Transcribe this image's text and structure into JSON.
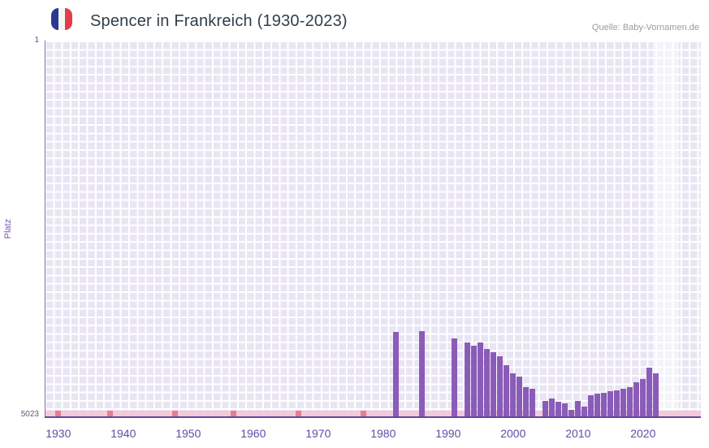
{
  "header": {
    "title": "Spencer in Frankreich (1930-2023)",
    "source": "Quelle: Baby-Vornamen.de",
    "flag_colors": [
      "#2b3a8f",
      "#f4f4f4",
      "#e23c49"
    ]
  },
  "chart_data": {
    "type": "bar",
    "title": "Spencer in Frankreich (1930-2023)",
    "xlabel": "",
    "ylabel": "Platz",
    "y_axis": {
      "min": 1,
      "max": 5023,
      "inverted": true,
      "top_label": "1",
      "bottom_label": "5023"
    },
    "x_range": [
      1927.9,
      2028.9
    ],
    "x_ticks": [
      "1930",
      "1940",
      "1950",
      "1960",
      "1970",
      "1980",
      "1990",
      "2000",
      "2010",
      "2020"
    ],
    "grid": true,
    "legend": false,
    "bars": [
      {
        "year": 1982,
        "rank": 3890
      },
      {
        "year": 1986,
        "rank": 3885
      },
      {
        "year": 1991,
        "rank": 3985
      },
      {
        "year": 1993,
        "rank": 4040
      },
      {
        "year": 1994,
        "rank": 4075
      },
      {
        "year": 1995,
        "rank": 4035
      },
      {
        "year": 1996,
        "rank": 4120
      },
      {
        "year": 1997,
        "rank": 4165
      },
      {
        "year": 1998,
        "rank": 4220
      },
      {
        "year": 1999,
        "rank": 4340
      },
      {
        "year": 2000,
        "rank": 4445
      },
      {
        "year": 2001,
        "rank": 4490
      },
      {
        "year": 2002,
        "rank": 4630
      },
      {
        "year": 2003,
        "rank": 4650
      },
      {
        "year": 2005,
        "rank": 4815
      },
      {
        "year": 2006,
        "rank": 4780
      },
      {
        "year": 2007,
        "rank": 4825
      },
      {
        "year": 2008,
        "rank": 4845
      },
      {
        "year": 2009,
        "rank": 4935
      },
      {
        "year": 2010,
        "rank": 4815
      },
      {
        "year": 2011,
        "rank": 4890
      },
      {
        "year": 2012,
        "rank": 4740
      },
      {
        "year": 2013,
        "rank": 4720
      },
      {
        "year": 2014,
        "rank": 4705
      },
      {
        "year": 2015,
        "rank": 4685
      },
      {
        "year": 2016,
        "rank": 4670
      },
      {
        "year": 2017,
        "rank": 4650
      },
      {
        "year": 2018,
        "rank": 4630
      },
      {
        "year": 2019,
        "rank": 4565
      },
      {
        "year": 2020,
        "rank": 4520
      },
      {
        "year": 2021,
        "rank": 4370
      },
      {
        "year": 2022,
        "rank": 4445
      }
    ],
    "bottom_marker_years": [
      1930,
      1938,
      1948,
      1957,
      1967,
      1977
    ],
    "highlight_years": [
      2021.5,
      2025.5
    ],
    "colors": {
      "bar": "#8a5cb8",
      "bottom_band": "#f4c9da",
      "bottom_marker": "#e87d92",
      "plot_background": "#e9e5f3",
      "grid_line": "#ffffff",
      "highlight": "rgba(255,255,255,0.55)",
      "axis_line": "#5b4a9b",
      "tick_label": "#5a4fa5",
      "title_text": "#2e3f4c",
      "source_text": "#9a9aa5",
      "ylabel_text": "#7a5db0"
    }
  }
}
